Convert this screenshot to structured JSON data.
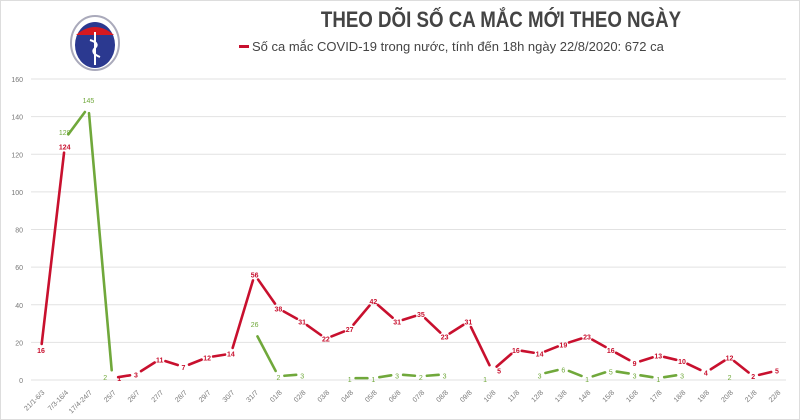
{
  "logo": {
    "text": "BỘ Y TẾ",
    "subtext": "MINISTRY OF HEALTH"
  },
  "chart_data": {
    "type": "line",
    "title": "THEO DÕI SỐ CA MẮC MỚI THEO NGÀY",
    "legend": "Số ca mắc COVID-19 trong nước, tính đến 18h ngày 22/8/2020: 672 ca",
    "legend_placement": "top",
    "ylim": [
      0,
      160
    ],
    "yticks": [
      0,
      20,
      40,
      60,
      80,
      100,
      120,
      140,
      160
    ],
    "grid": true,
    "categories": [
      "21/1-6/3",
      "7/3-16/4",
      "17/4-24/7",
      "25/7",
      "26/7",
      "27/7",
      "28/7",
      "29/7",
      "30/7",
      "31/7",
      "01/8",
      "02/8",
      "03/8",
      "04/8",
      "05/8",
      "06/8",
      "07/8",
      "08/8",
      "09/8",
      "10/8",
      "11/8",
      "12/8",
      "13/8",
      "14/8",
      "15/8",
      "16/8",
      "17/8",
      "18/8",
      "19/8",
      "20/8",
      "21/8",
      "22/8"
    ],
    "series": [
      {
        "name": "Số ca mắc COVID-19 trong nước",
        "color": "#c8102e",
        "values": [
          16,
          124,
          null,
          1,
          3,
          11,
          7,
          12,
          14,
          56,
          38,
          31,
          22,
          27,
          42,
          31,
          35,
          23,
          31,
          5,
          16,
          14,
          19,
          23,
          16,
          9,
          13,
          10,
          4,
          12,
          2,
          5
        ]
      },
      {
        "color": "#70a83b",
        "values": [
          null,
          128,
          145,
          2,
          null,
          null,
          null,
          null,
          null,
          26,
          2,
          3,
          null,
          1,
          1,
          3,
          2,
          3,
          null,
          1,
          null,
          3,
          6,
          1,
          5,
          3,
          1,
          3,
          null,
          2,
          null,
          null
        ]
      }
    ]
  }
}
